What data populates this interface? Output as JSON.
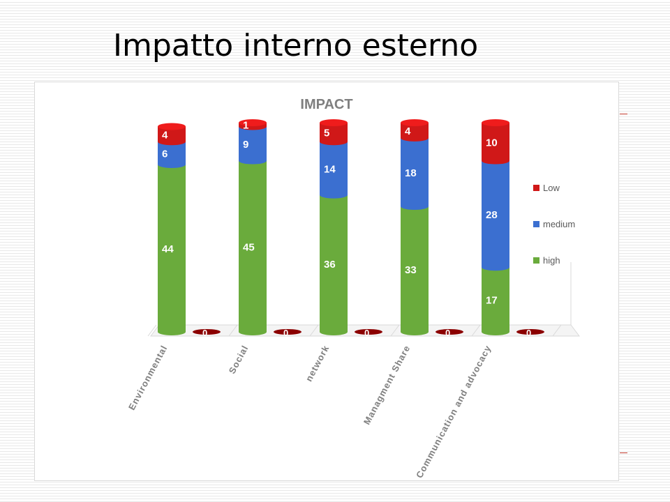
{
  "slide": {
    "title": "Impatto interno esterno"
  },
  "chart_data": {
    "type": "bar",
    "stacked": true,
    "title": "IMPACT",
    "categories": [
      "Environmental",
      "Social",
      "network",
      "Managment Share",
      "Communication and advocacy"
    ],
    "series": [
      {
        "name": "high",
        "color": "#6aab3c",
        "values": [
          44,
          45,
          36,
          33,
          17
        ]
      },
      {
        "name": "medium",
        "color": "#3b6fd0",
        "values": [
          6,
          9,
          14,
          18,
          28
        ]
      },
      {
        "name": "Low",
        "color": "#d01818",
        "values": [
          4,
          1,
          5,
          4,
          10
        ]
      }
    ],
    "secondary_series": {
      "color": "#8b0000",
      "values": [
        0,
        0,
        0,
        0,
        0
      ]
    },
    "legend": {
      "position": "right",
      "order": [
        "Low",
        "medium",
        "high"
      ]
    },
    "grid": false,
    "ylim": [
      0,
      55
    ]
  }
}
